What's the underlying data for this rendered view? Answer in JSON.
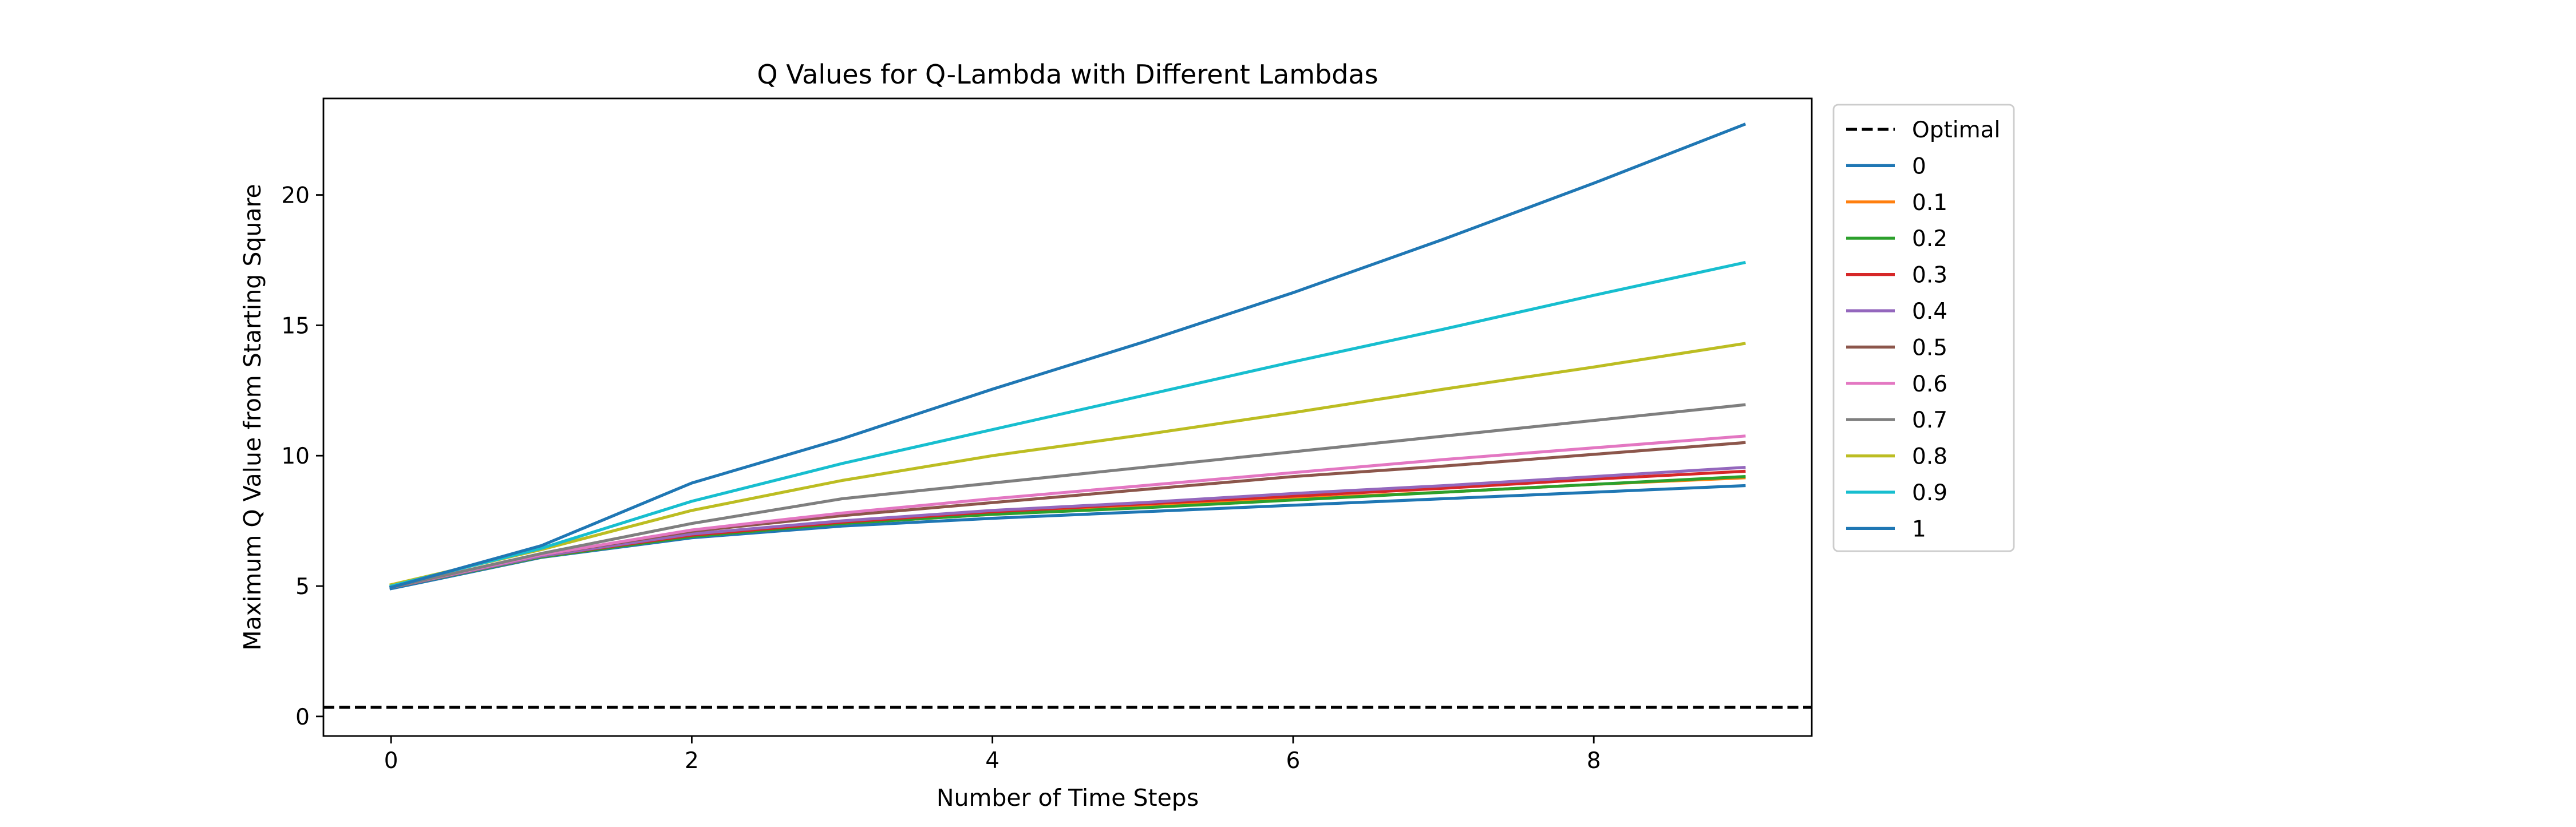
{
  "chart_data": {
    "type": "line",
    "title": "Q Values for Q-Lambda with Different Lambdas",
    "xlabel": "Number of Time Steps",
    "ylabel": "Maximum Q Value from Starting Square",
    "xlim": [
      -0.45,
      9.45
    ],
    "ylim": [
      -0.75,
      23.7
    ],
    "xticks": [
      0,
      2,
      4,
      6,
      8
    ],
    "yticks": [
      0,
      5,
      10,
      15,
      20
    ],
    "grid": false,
    "legend_position": "outside-right-top",
    "x": [
      0,
      1,
      2,
      3,
      4,
      5,
      6,
      7,
      8,
      9
    ],
    "reference_line": {
      "name": "Optimal",
      "y": 0.35,
      "color": "#000000",
      "style": "dashed"
    },
    "series": [
      {
        "name": "0",
        "color": "#1f77b4",
        "values": [
          4.9,
          6.1,
          6.85,
          7.3,
          7.6,
          7.85,
          8.1,
          8.35,
          8.6,
          8.85
        ]
      },
      {
        "name": "0.1",
        "color": "#ff7f0e",
        "values": [
          4.95,
          6.12,
          6.9,
          7.4,
          7.75,
          8.05,
          8.35,
          8.6,
          8.9,
          9.15
        ]
      },
      {
        "name": "0.2",
        "color": "#2ca02c",
        "values": [
          4.95,
          6.12,
          6.9,
          7.4,
          7.75,
          8.0,
          8.3,
          8.6,
          8.9,
          9.2
        ]
      },
      {
        "name": "0.3",
        "color": "#d62728",
        "values": [
          4.95,
          6.15,
          6.95,
          7.45,
          7.85,
          8.15,
          8.45,
          8.75,
          9.1,
          9.4
        ]
      },
      {
        "name": "0.4",
        "color": "#9467bd",
        "values": [
          4.95,
          6.15,
          7.0,
          7.5,
          7.9,
          8.2,
          8.55,
          8.85,
          9.2,
          9.55
        ]
      },
      {
        "name": "0.5",
        "color": "#8c564b",
        "values": [
          4.95,
          6.2,
          7.1,
          7.7,
          8.2,
          8.7,
          9.2,
          9.6,
          10.05,
          10.5
        ]
      },
      {
        "name": "0.6",
        "color": "#e377c2",
        "values": [
          4.95,
          6.2,
          7.15,
          7.8,
          8.35,
          8.85,
          9.35,
          9.85,
          10.3,
          10.75
        ]
      },
      {
        "name": "0.7",
        "color": "#7f7f7f",
        "values": [
          4.95,
          6.25,
          7.4,
          8.35,
          8.95,
          9.55,
          10.15,
          10.75,
          11.35,
          11.95
        ]
      },
      {
        "name": "0.8",
        "color": "#bcbd22",
        "values": [
          5.05,
          6.4,
          7.9,
          9.05,
          10.0,
          10.8,
          11.65,
          12.55,
          13.4,
          14.3
        ]
      },
      {
        "name": "0.9",
        "color": "#17becf",
        "values": [
          5.0,
          6.45,
          8.25,
          9.7,
          11.0,
          12.3,
          13.6,
          14.85,
          16.15,
          17.4
        ]
      },
      {
        "name": "1",
        "color": "#1f77b4",
        "values": [
          4.95,
          6.55,
          8.95,
          10.65,
          12.55,
          14.35,
          16.25,
          18.3,
          20.45,
          22.7
        ]
      }
    ]
  }
}
